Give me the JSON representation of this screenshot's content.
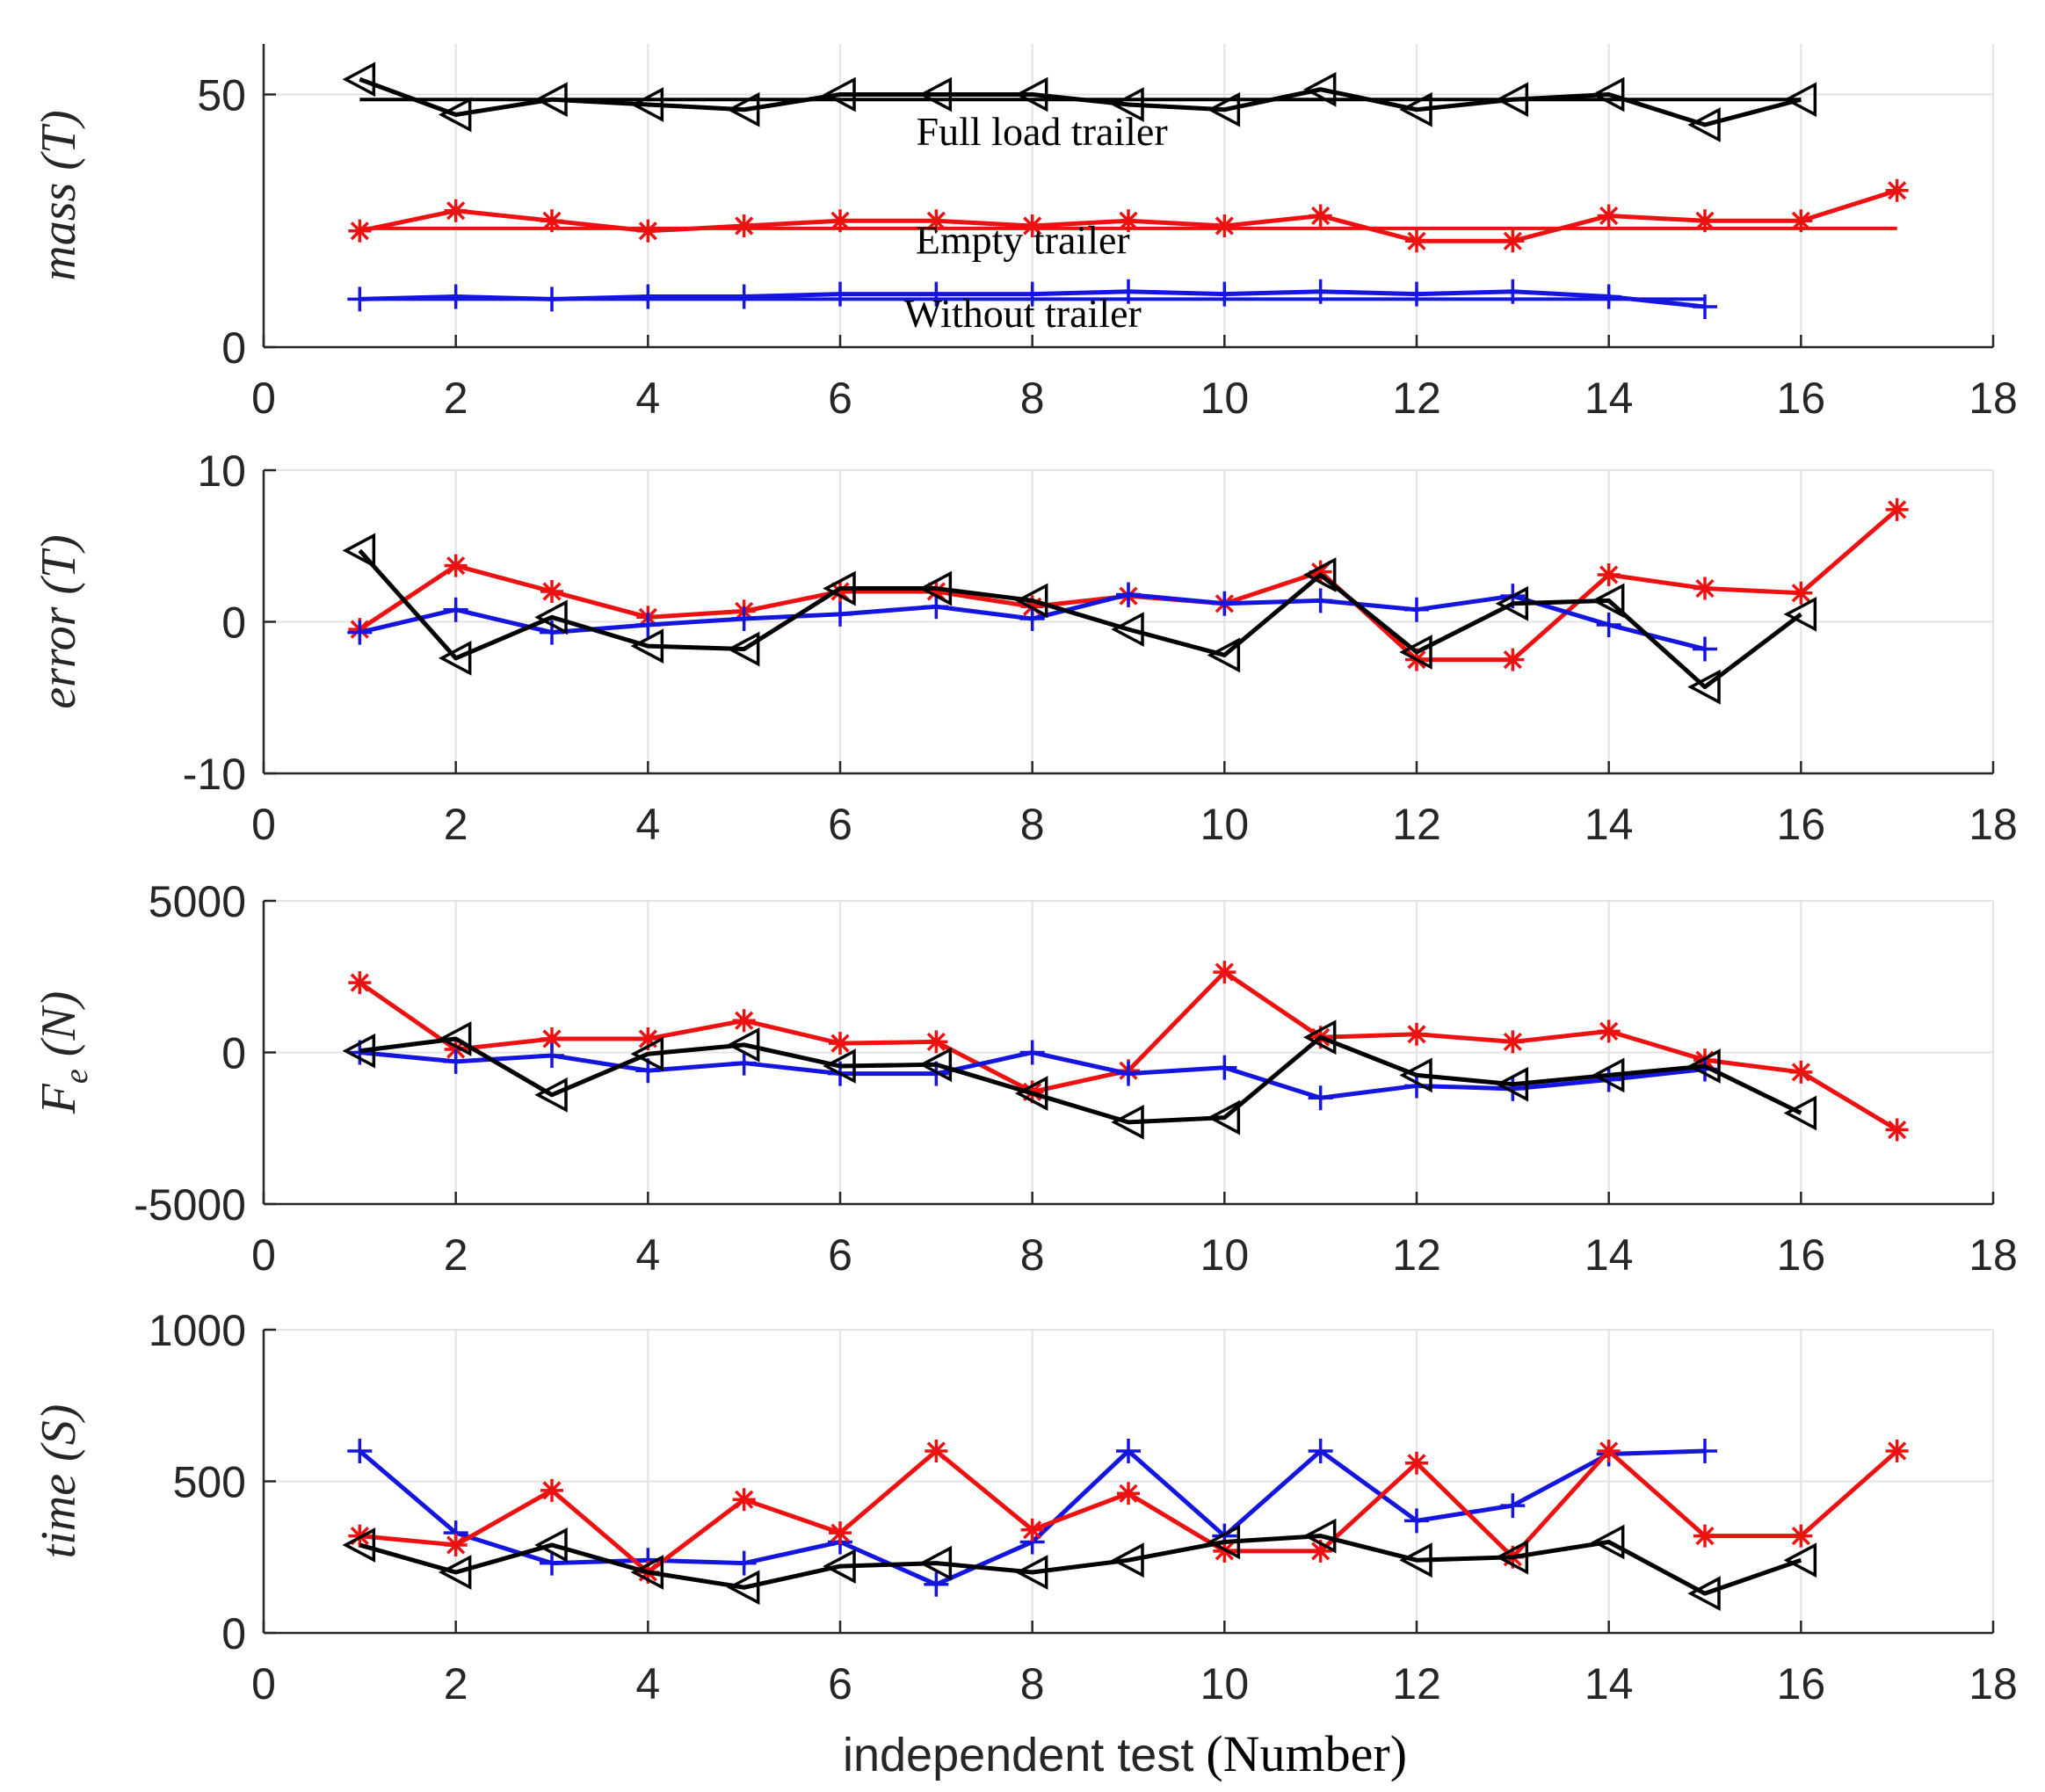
{
  "colors": {
    "full": "#000000",
    "empty": "#ee1111",
    "without": "#1515e0",
    "grid": "#e3e3e3",
    "axis": "#262626"
  },
  "chart_data": [
    {
      "type": "line",
      "ylabel": "mass (T)",
      "xlim": [
        0,
        18
      ],
      "ylim": [
        0,
        60
      ],
      "xticks": [
        "0",
        "2",
        "4",
        "6",
        "8",
        "10",
        "12",
        "14",
        "16",
        "18"
      ],
      "yticks": [
        {
          "v": 0,
          "label": "0"
        },
        {
          "v": 50,
          "label": "50"
        }
      ],
      "annotations": [
        {
          "text": "Full load trailer",
          "x": 8.1,
          "y": 40
        },
        {
          "text": "Empty trailer",
          "x": 7.9,
          "y": 18.5
        },
        {
          "text": "Without trailer",
          "x": 7.9,
          "y": 4
        },
        {
          "text": "",
          "x": 0,
          "y": 0
        }
      ],
      "series": [
        {
          "name": "Empty trailer",
          "color": "empty",
          "marker": "asterisk",
          "x": [
            1,
            2,
            3,
            4,
            5,
            6,
            7,
            8,
            9,
            10,
            11,
            12,
            13,
            14,
            15,
            16,
            17
          ],
          "y": [
            23,
            27,
            25,
            23,
            24,
            25,
            25,
            24,
            25,
            24,
            26,
            21,
            21,
            26,
            25,
            25,
            31
          ]
        },
        {
          "name": "Empty trailer reference",
          "color": "empty",
          "marker": "none",
          "x": [
            1,
            17
          ],
          "y": [
            23.5,
            23.5
          ]
        },
        {
          "name": "Full load trailer",
          "color": "full",
          "marker": "triangle",
          "x": [
            1,
            2,
            3,
            4,
            5,
            6,
            7,
            8,
            9,
            10,
            11,
            12,
            13,
            14,
            15,
            16
          ],
          "y": [
            53,
            46,
            49,
            48,
            47,
            50,
            50,
            50,
            48,
            47,
            51,
            47,
            49,
            50,
            44,
            49
          ]
        },
        {
          "name": "Full load trailer reference",
          "color": "full",
          "marker": "none",
          "x": [
            1,
            16
          ],
          "y": [
            49,
            49
          ]
        },
        {
          "name": "Without trailer",
          "color": "without",
          "marker": "plus",
          "x": [
            1,
            2,
            3,
            4,
            5,
            6,
            7,
            8,
            9,
            10,
            11,
            12,
            13,
            14,
            15
          ],
          "y": [
            9.5,
            10,
            9.5,
            10,
            10,
            10.5,
            10.5,
            10.5,
            11,
            10.5,
            11,
            10.5,
            11,
            10,
            8
          ]
        },
        {
          "name": "Without trailer reference",
          "color": "without",
          "marker": "none",
          "x": [
            1,
            15
          ],
          "y": [
            9.5,
            9.5
          ]
        }
      ]
    },
    {
      "type": "line",
      "ylabel": "error (T)",
      "xlim": [
        0,
        18
      ],
      "ylim": [
        -10,
        10
      ],
      "xticks": [
        "0",
        "2",
        "4",
        "6",
        "8",
        "10",
        "12",
        "14",
        "16",
        "18"
      ],
      "yticks": [
        {
          "v": -10,
          "label": "-10"
        },
        {
          "v": 0,
          "label": "0"
        },
        {
          "v": 10,
          "label": "10"
        }
      ],
      "series": [
        {
          "name": "Empty trailer",
          "color": "empty",
          "marker": "asterisk",
          "x": [
            1,
            2,
            3,
            4,
            5,
            6,
            7,
            8,
            9,
            10,
            11,
            12,
            13,
            14,
            15,
            16,
            17
          ],
          "y": [
            -0.5,
            3.7,
            2,
            0.3,
            0.7,
            2,
            2,
            1,
            1.7,
            1.2,
            3.3,
            -2.5,
            -2.5,
            3.1,
            2.2,
            1.9,
            7.4
          ]
        },
        {
          "name": "Without trailer",
          "color": "without",
          "marker": "plus",
          "x": [
            1,
            2,
            3,
            4,
            5,
            6,
            7,
            8,
            9,
            10,
            11,
            12,
            13,
            14,
            15
          ],
          "y": [
            -0.7,
            0.8,
            -0.7,
            -0.2,
            0.2,
            0.5,
            1,
            0.2,
            1.8,
            1.2,
            1.4,
            0.8,
            1.7,
            -0.2,
            -1.8
          ]
        },
        {
          "name": "Full load trailer",
          "color": "full",
          "marker": "triangle",
          "x": [
            1,
            2,
            3,
            4,
            5,
            6,
            7,
            8,
            9,
            10,
            11,
            12,
            13,
            14,
            15,
            16
          ],
          "y": [
            4.7,
            -2.4,
            0.3,
            -1.6,
            -1.8,
            2.2,
            2.2,
            1.4,
            -0.5,
            -2.2,
            3.1,
            -2,
            1.2,
            1.4,
            -4.3,
            0.5
          ]
        }
      ]
    },
    {
      "type": "line",
      "ylabel": "F_e (N)",
      "ylabel_main": "F",
      "ylabel_sub": "e",
      "ylabel_rest": " (N)",
      "xlim": [
        0,
        18
      ],
      "ylim": [
        -5000,
        5000
      ],
      "xticks": [
        "0",
        "2",
        "4",
        "6",
        "8",
        "10",
        "12",
        "14",
        "16",
        "18"
      ],
      "yticks": [
        {
          "v": -5000,
          "label": "-5000"
        },
        {
          "v": 0,
          "label": "0"
        },
        {
          "v": 5000,
          "label": "5000"
        }
      ],
      "series": [
        {
          "name": "Empty trailer",
          "color": "empty",
          "marker": "asterisk",
          "x": [
            1,
            2,
            3,
            4,
            5,
            6,
            7,
            8,
            9,
            10,
            11,
            12,
            13,
            14,
            15,
            16,
            17
          ],
          "y": [
            2300,
            100,
            450,
            450,
            1050,
            300,
            350,
            -1300,
            -600,
            2650,
            500,
            600,
            350,
            700,
            -250,
            -650,
            -2550
          ]
        },
        {
          "name": "Without trailer",
          "color": "without",
          "marker": "plus",
          "x": [
            1,
            2,
            3,
            4,
            5,
            6,
            7,
            8,
            9,
            10,
            11,
            12,
            13,
            14,
            15
          ],
          "y": [
            0,
            -300,
            -100,
            -600,
            -350,
            -700,
            -700,
            0,
            -700,
            -500,
            -1500,
            -1100,
            -1200,
            -900,
            -550
          ]
        },
        {
          "name": "Full load trailer",
          "color": "full",
          "marker": "triangle",
          "x": [
            1,
            2,
            3,
            4,
            5,
            6,
            7,
            8,
            9,
            10,
            11,
            12,
            13,
            14,
            15,
            16
          ],
          "y": [
            50,
            450,
            -1400,
            -50,
            250,
            -450,
            -400,
            -1350,
            -2300,
            -2150,
            500,
            -750,
            -1050,
            -750,
            -450,
            -2000
          ]
        }
      ]
    },
    {
      "type": "line",
      "ylabel": "time (S)",
      "xlabel_a": "independent test",
      "xlabel_b": "(Number)",
      "xlim": [
        0,
        18
      ],
      "ylim": [
        0,
        1000
      ],
      "xticks": [
        "0",
        "2",
        "4",
        "6",
        "8",
        "10",
        "12",
        "14",
        "16",
        "18"
      ],
      "yticks": [
        {
          "v": 0,
          "label": "0"
        },
        {
          "v": 500,
          "label": "500"
        },
        {
          "v": 1000,
          "label": "1000"
        }
      ],
      "series": [
        {
          "name": "Without trailer",
          "color": "without",
          "marker": "plus",
          "x": [
            1,
            2,
            3,
            4,
            5,
            6,
            7,
            8,
            9,
            10,
            11,
            12,
            13,
            14,
            15
          ],
          "y": [
            600,
            330,
            230,
            240,
            230,
            300,
            160,
            300,
            600,
            320,
            600,
            370,
            420,
            590,
            600
          ]
        },
        {
          "name": "Empty trailer",
          "color": "empty",
          "marker": "asterisk",
          "x": [
            1,
            2,
            3,
            4,
            5,
            6,
            7,
            8,
            9,
            10,
            11,
            12,
            13,
            14,
            15,
            16,
            17
          ],
          "y": [
            320,
            290,
            470,
            200,
            440,
            330,
            600,
            340,
            460,
            270,
            270,
            560,
            250,
            600,
            320,
            320,
            600
          ]
        },
        {
          "name": "Full load trailer",
          "color": "full",
          "marker": "triangle",
          "x": [
            1,
            2,
            3,
            4,
            5,
            6,
            7,
            8,
            9,
            10,
            11,
            12,
            13,
            14,
            15,
            16
          ],
          "y": [
            290,
            200,
            290,
            200,
            150,
            220,
            230,
            200,
            240,
            300,
            320,
            240,
            250,
            300,
            130,
            240
          ]
        }
      ]
    }
  ]
}
